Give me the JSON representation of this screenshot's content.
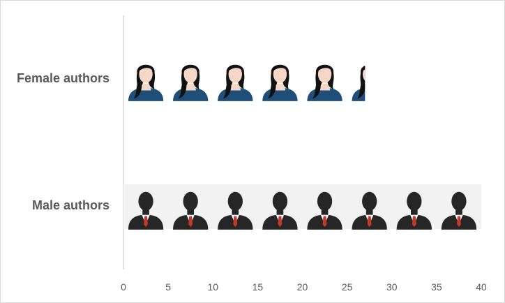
{
  "chart_data": {
    "type": "bar",
    "orientation": "horizontal",
    "style": "pictograph",
    "categories": [
      "Female authors",
      "Male authors"
    ],
    "values": [
      27,
      40
    ],
    "icons": [
      "female-person-icon",
      "male-person-icon"
    ],
    "icon_unit": 5,
    "xlim": [
      0,
      40
    ],
    "xticks": [
      "0",
      "5",
      "10",
      "15",
      "20",
      "25",
      "30",
      "35",
      "40"
    ],
    "title": "",
    "xlabel": "",
    "ylabel": "",
    "grid": false,
    "legend": "none"
  },
  "colors": {
    "female_top": "#1f4e79",
    "female_hair": "#111111",
    "skin": "#f5d7c7",
    "male_body": "#262626",
    "tie": "#c0392b",
    "axis_line": "#d9d9d9",
    "text": "#595959",
    "male_band_bg": "#f2f2f2"
  }
}
